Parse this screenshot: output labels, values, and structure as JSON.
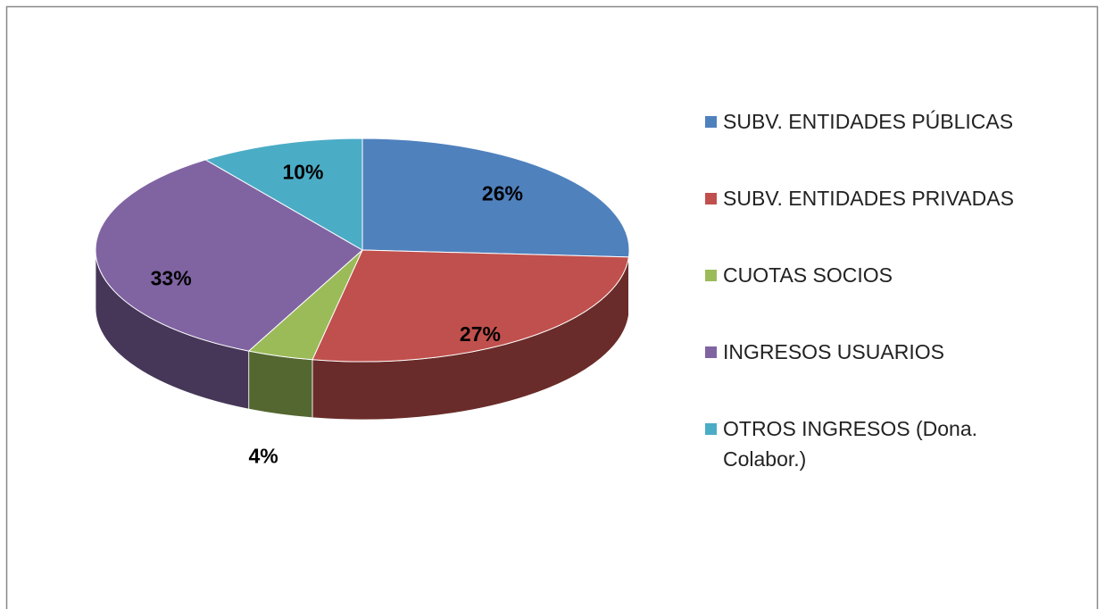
{
  "chart_data": {
    "type": "pie3d",
    "categories": [
      "SUBV. ENTIDADES PÚBLICAS",
      "SUBV. ENTIDADES PRIVADAS",
      "CUOTAS SOCIOS",
      "INGRESOS USUARIOS",
      "OTROS INGRESOS (Dona. Colabor.)"
    ],
    "values": [
      26,
      27,
      4,
      33,
      10
    ],
    "value_labels": [
      "26%",
      "27%",
      "4%",
      "33%",
      "10%"
    ],
    "colors": [
      "#4f81bd",
      "#c0504d",
      "#9bbb59",
      "#8064a2",
      "#4bacc6"
    ],
    "legend": "right"
  }
}
